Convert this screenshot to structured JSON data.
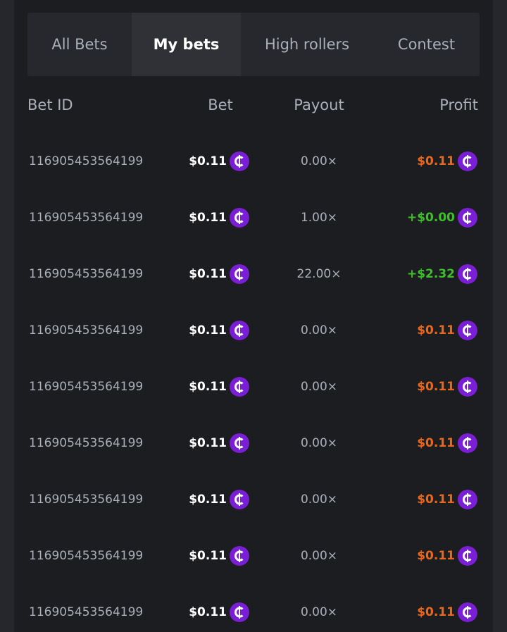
{
  "tabs": [
    "All Bets",
    "My bets",
    "High rollers",
    "Contest"
  ],
  "active_tab": 1,
  "table": {
    "headers": [
      "Bet ID",
      "Bet",
      "Payout",
      "Profit"
    ],
    "rows": [
      {
        "id": "116905453564199",
        "bet": "$0.11",
        "payout": "0.00×",
        "profit": "$0.11",
        "profit_color": "#e8691e"
      },
      {
        "id": "116905453564199",
        "bet": "$0.11",
        "payout": "1.00×",
        "profit": "+$0.00",
        "profit_color": "#3fbf2b"
      },
      {
        "id": "116905453564199",
        "bet": "$0.11",
        "payout": "22.00×",
        "profit": "+$2.32",
        "profit_color": "#3fbf2b"
      },
      {
        "id": "116905453564199",
        "bet": "$0.11",
        "payout": "0.00×",
        "profit": "$0.11",
        "profit_color": "#e8691e"
      },
      {
        "id": "116905453564199",
        "bet": "$0.11",
        "payout": "0.00×",
        "profit": "$0.11",
        "profit_color": "#e8691e"
      },
      {
        "id": "116905453564199",
        "bet": "$0.11",
        "payout": "0.00×",
        "profit": "$0.11",
        "profit_color": "#e8691e"
      },
      {
        "id": "116905453564199",
        "bet": "$0.11",
        "payout": "0.00×",
        "profit": "$0.11",
        "profit_color": "#e8691e"
      },
      {
        "id": "116905453564199",
        "bet": "$0.11",
        "payout": "0.00×",
        "profit": "$0.11",
        "profit_color": "#e8691e"
      },
      {
        "id": "116905453564199",
        "bet": "$0.11",
        "payout": "0.00×",
        "profit": "$0.11",
        "profit_color": "#e8691e"
      }
    ]
  }
}
